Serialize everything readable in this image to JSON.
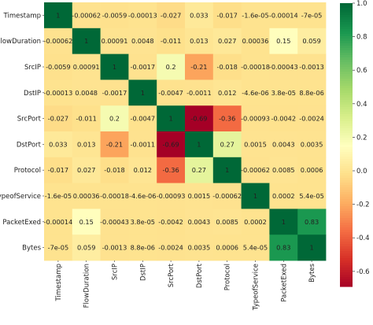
{
  "chart_data": {
    "type": "heatmap",
    "title": "",
    "xlabel": "",
    "ylabel": "",
    "variables": [
      "Timestamp",
      "FlowDuration",
      "SrcIP",
      "DstIP",
      "SrcPort",
      "DstPort",
      "Protocol",
      "TypeofService",
      "PacketExed",
      "Bytes"
    ],
    "cell_labels": [
      [
        "1",
        "-0.00062",
        "-0.0059",
        "-0.00013",
        "-0.027",
        "0.033",
        "-0.017",
        "-1.6e-05",
        "-0.00014",
        "-7e-05"
      ],
      [
        "-0.00062",
        "1",
        "0.00091",
        "0.0048",
        "-0.011",
        "0.013",
        "0.027",
        "0.00036",
        "0.15",
        "0.059"
      ],
      [
        "-0.0059",
        "0.00091",
        "1",
        "-0.0017",
        "0.2",
        "-0.21",
        "-0.018",
        "-0.00018",
        "-0.00043",
        "-0.0013"
      ],
      [
        "-0.00013",
        "0.0048",
        "-0.0017",
        "1",
        "-0.0047",
        "-0.0011",
        "0.012",
        "-4.6e-06",
        "3.8e-05",
        "8.8e-06"
      ],
      [
        "-0.027",
        "-0.011",
        "0.2",
        "-0.0047",
        "1",
        "-0.69",
        "-0.36",
        "-0.00093",
        "-0.0042",
        "-0.0024"
      ],
      [
        "0.033",
        "0.013",
        "-0.21",
        "-0.0011",
        "-0.69",
        "1",
        "0.27",
        "0.0015",
        "0.0043",
        "0.0035"
      ],
      [
        "-0.017",
        "0.027",
        "-0.018",
        "0.012",
        "-0.36",
        "0.27",
        "1",
        "-0.00062",
        "0.0085",
        "0.0006"
      ],
      [
        "-1.6e-05",
        "0.00036",
        "-0.00018",
        "-4.6e-06",
        "-0.00093",
        "0.0015",
        "-0.00062",
        "1",
        "0.0002",
        "5.4e-05"
      ],
      [
        "-0.00014",
        "0.15",
        "-0.00043",
        "3.8e-05",
        "-0.0042",
        "0.0043",
        "0.0085",
        "0.0002",
        "1",
        "0.83"
      ],
      [
        "-7e-05",
        "0.059",
        "-0.0013",
        "8.8e-06",
        "-0.0024",
        "0.0035",
        "0.0006",
        "5.4e-05",
        "0.83",
        "1"
      ]
    ],
    "colorbar": {
      "cmap": "RdYlGn",
      "vmin": -0.69,
      "vmax": 1,
      "ticks": [
        "1.0",
        "0.8",
        "0.6",
        "0.4",
        "0.2",
        "0.0",
        "-0.2",
        "-0.4",
        "-0.6"
      ]
    },
    "legend_position": "right",
    "grid": false
  }
}
